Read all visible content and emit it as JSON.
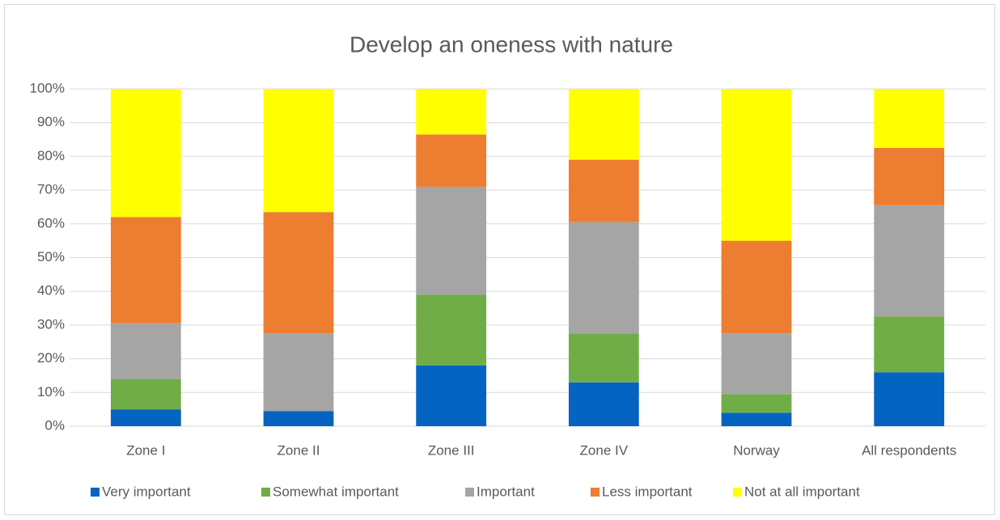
{
  "chart_data": {
    "type": "stacked_bar",
    "title": "Develop an oneness with nature",
    "categories": [
      "Zone I",
      "Zone II",
      "Zone III",
      "Zone IV",
      "Norway",
      "All respondents"
    ],
    "series": [
      {
        "name": "Very important",
        "color": "#0563C1",
        "values": [
          5,
          4.5,
          18,
          13,
          4,
          16
        ]
      },
      {
        "name": "Somewhat important",
        "color": "#70AD47",
        "values": [
          9,
          0,
          21,
          14.5,
          5.5,
          16.5
        ]
      },
      {
        "name": "Important",
        "color": "#A5A5A5",
        "values": [
          16.5,
          23,
          32,
          33,
          18,
          33
        ]
      },
      {
        "name": "Less important",
        "color": "#ED7D31",
        "values": [
          31.5,
          36,
          15.5,
          18.5,
          27.5,
          17
        ]
      },
      {
        "name": "Not at all important",
        "color": "#FFFF00",
        "values": [
          38,
          36.5,
          13.5,
          21,
          45,
          17.5
        ]
      }
    ],
    "ylim": [
      0,
      100
    ],
    "yticks": [
      {
        "value": 0,
        "label": "0%"
      },
      {
        "value": 10,
        "label": "10%"
      },
      {
        "value": 20,
        "label": "20%"
      },
      {
        "value": 30,
        "label": "30%"
      },
      {
        "value": 40,
        "label": "40%"
      },
      {
        "value": 50,
        "label": "50%"
      },
      {
        "value": 60,
        "label": "60%"
      },
      {
        "value": 70,
        "label": "70%"
      },
      {
        "value": 80,
        "label": "80%"
      },
      {
        "value": 90,
        "label": "90%"
      },
      {
        "value": 100,
        "label": "100%"
      }
    ],
    "grid": true,
    "legend": "bottom"
  }
}
